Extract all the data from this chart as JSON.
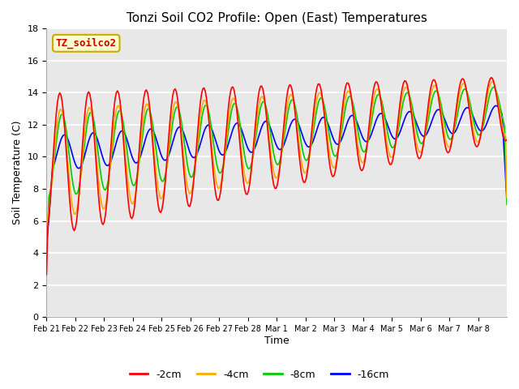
{
  "title": "Tonzi Soil CO2 Profile: Open (East) Temperatures",
  "xlabel": "Time",
  "ylabel": "Soil Temperature (C)",
  "ylim": [
    0,
    18
  ],
  "legend_label": "TZ_soilco2",
  "series_labels": [
    "-2cm",
    "-4cm",
    "-8cm",
    "-16cm"
  ],
  "series_colors": [
    "#ff0000",
    "#ffaa00",
    "#00cc00",
    "#0000ff"
  ],
  "fig_bg_color": "#ffffff",
  "plot_bg_color": "#e8e8e8",
  "tick_labels": [
    "Feb 21",
    "Feb 22",
    "Feb 23",
    "Feb 24",
    "Feb 25",
    "Feb 26",
    "Feb 27",
    "Feb 28",
    "Mar 1",
    "Mar 2",
    "Mar 3",
    "Mar 4",
    "Mar 5",
    "Mar 6",
    "Mar 7",
    "Mar 8"
  ],
  "grid_color": "#ffffff",
  "legend_bg": "#ffffcc",
  "legend_edge": "#ccaa00"
}
